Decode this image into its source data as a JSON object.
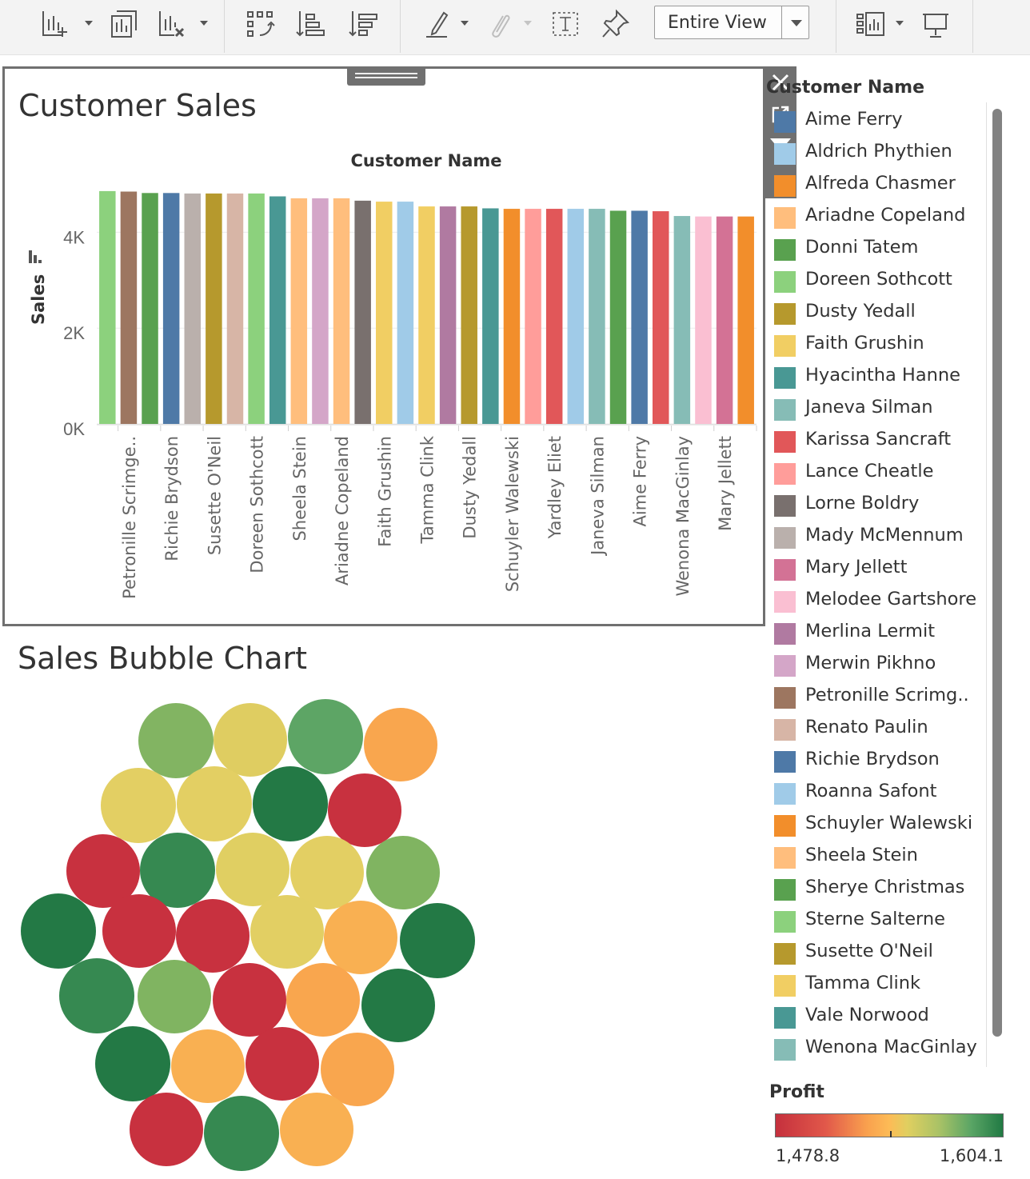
{
  "toolbar": {
    "buttons": [
      "new-worksheet-icon",
      "duplicate-sheet-icon",
      "clear-sheet-icon",
      "swap-axes-icon",
      "sort-ascending-icon",
      "sort-descending-icon",
      "highlight-icon",
      "group-members-icon",
      "show-mark-labels-icon",
      "pin-axes-icon",
      "show-me-icon",
      "presentation-mode-icon"
    ],
    "fit": "Entire View"
  },
  "sales_chart": {
    "title": "Customer Sales",
    "panel_tools": [
      "close-icon",
      "open-in-new-icon",
      "filter-icon",
      "more-options-icon"
    ]
  },
  "bubble_chart": {
    "title": "Sales Bubble Chart"
  },
  "chart_data": [
    {
      "type": "bar",
      "xlabel": "Customer Name",
      "ylabel": "Sales",
      "ylim": [
        0,
        5000
      ],
      "yticks": [
        "0K",
        "2K",
        "4K"
      ],
      "grid": true,
      "categories": [
        "Sterne Salterne",
        "Petronille Scrimge..",
        "Sherye Christmas",
        "Richie Brydson",
        "Mady McMennum",
        "Susette O'Neil",
        "Renato Paulin",
        "Doreen Sothcott",
        "Vale Norwood",
        "Sheela Stein",
        "Merwin Pikhno",
        "Ariadne Copeland",
        "Lorne Boldry",
        "Faith Grushin",
        "Roanna Safont",
        "Tamma Clink",
        "Merlina Lermit",
        "Dusty Yedall",
        "Hyacintha Hanne",
        "Schuyler Walewski",
        "Lance Cheatle",
        "Yardley Eliet",
        "Roanna Safont",
        "Janeva Silman",
        "Sherye Christmas",
        "Aime Ferry",
        "Karissa Sancraft",
        "Wenona MacGinlay",
        "Melodee Gartshore",
        "Mary Jellett",
        "Schuyler Walewski"
      ],
      "values": [
        4860,
        4850,
        4820,
        4820,
        4810,
        4810,
        4810,
        4810,
        4750,
        4710,
        4710,
        4710,
        4660,
        4640,
        4640,
        4540,
        4540,
        4540,
        4500,
        4490,
        4490,
        4490,
        4490,
        4490,
        4450,
        4450,
        4440,
        4340,
        4330,
        4330,
        4330
      ],
      "tick_labels": [
        "Petronille Scrimge..",
        "Richie Brydson",
        "Susette O'Neil",
        "Doreen Sothcott",
        "Sheela Stein",
        "Ariadne Copeland",
        "Faith Grushin",
        "Tamma Clink",
        "Dusty Yedall",
        "Schuyler Walewski",
        "Yardley Eliet",
        "Janeva Silman",
        "Aime Ferry",
        "Wenona MacGinlay",
        "Mary Jellett"
      ],
      "colors": [
        "#8cd17d",
        "#9d7660",
        "#59a14f",
        "#4e79a7",
        "#bab0ac",
        "#b6992d",
        "#d7b5a6",
        "#8cd17d",
        "#499894",
        "#ffbe7d",
        "#d4a6c8",
        "#ffbe7d",
        "#79706e",
        "#f1ce63",
        "#a0cbe8",
        "#f1ce63",
        "#b07aa1",
        "#b6992d",
        "#499894",
        "#f28e2b",
        "#ff9d9a",
        "#e15759",
        "#a0cbe8",
        "#86bcb6",
        "#59a14f",
        "#4e79a7",
        "#e15759",
        "#86bcb6",
        "#fabfd2",
        "#d37295",
        "#f28e2b"
      ]
    },
    {
      "type": "bubble",
      "color_measure": "Profit",
      "color_range": [
        1478.8,
        1604.1
      ],
      "bubbles": [
        {
          "profit": 1575,
          "color": "#82b462"
        },
        {
          "profit": 1540,
          "color": "#dfcd61"
        },
        {
          "profit": 1585,
          "color": "#5da565"
        },
        {
          "profit": 1515,
          "color": "#f9a64e"
        },
        {
          "profit": 1540,
          "color": "#e3cf63"
        },
        {
          "profit": 1540,
          "color": "#e3cf63"
        },
        {
          "profit": 1604,
          "color": "#237945"
        },
        {
          "profit": 1479,
          "color": "#c8313f"
        },
        {
          "profit": 1479,
          "color": "#c8313f"
        },
        {
          "profit": 1598,
          "color": "#368951"
        },
        {
          "profit": 1540,
          "color": "#e0cf62"
        },
        {
          "profit": 1540,
          "color": "#e3cf63"
        },
        {
          "profit": 1575,
          "color": "#80b461"
        },
        {
          "profit": 1604,
          "color": "#237945"
        },
        {
          "profit": 1479,
          "color": "#c8313f"
        },
        {
          "profit": 1479,
          "color": "#c8313f"
        },
        {
          "profit": 1540,
          "color": "#e2cf63"
        },
        {
          "profit": 1525,
          "color": "#f9b052"
        },
        {
          "profit": 1604,
          "color": "#237945"
        },
        {
          "profit": 1598,
          "color": "#368951"
        },
        {
          "profit": 1575,
          "color": "#80b461"
        },
        {
          "profit": 1479,
          "color": "#c8313f"
        },
        {
          "profit": 1515,
          "color": "#f9a64e"
        },
        {
          "profit": 1604,
          "color": "#237945"
        },
        {
          "profit": 1604,
          "color": "#237945"
        },
        {
          "profit": 1525,
          "color": "#f9b052"
        },
        {
          "profit": 1479,
          "color": "#c8313f"
        },
        {
          "profit": 1515,
          "color": "#f9a64e"
        },
        {
          "profit": 1479,
          "color": "#c8313f"
        },
        {
          "profit": 1598,
          "color": "#368951"
        },
        {
          "profit": 1525,
          "color": "#f9b052"
        }
      ]
    }
  ],
  "legend": {
    "title": "Customer Name",
    "items": [
      {
        "label": "Aime Ferry",
        "color": "#4e79a7"
      },
      {
        "label": "Aldrich Phythien",
        "color": "#a0cbe8"
      },
      {
        "label": "Alfreda Chasmer",
        "color": "#f28e2b"
      },
      {
        "label": "Ariadne Copeland",
        "color": "#ffbe7d"
      },
      {
        "label": "Donni Tatem",
        "color": "#59a14f"
      },
      {
        "label": "Doreen Sothcott",
        "color": "#8cd17d"
      },
      {
        "label": "Dusty Yedall",
        "color": "#b6992d"
      },
      {
        "label": "Faith Grushin",
        "color": "#f1ce63"
      },
      {
        "label": "Hyacintha Hanne",
        "color": "#499894"
      },
      {
        "label": "Janeva Silman",
        "color": "#86bcb6"
      },
      {
        "label": "Karissa Sancraft",
        "color": "#e15759"
      },
      {
        "label": "Lance Cheatle",
        "color": "#ff9d9a"
      },
      {
        "label": "Lorne Boldry",
        "color": "#79706e"
      },
      {
        "label": "Mady McMennum",
        "color": "#bab0ac"
      },
      {
        "label": "Mary Jellett",
        "color": "#d37295"
      },
      {
        "label": "Melodee Gartshore",
        "color": "#fabfd2"
      },
      {
        "label": "Merlina Lermit",
        "color": "#b07aa1"
      },
      {
        "label": "Merwin Pikhno",
        "color": "#d4a6c8"
      },
      {
        "label": "Petronille Scrimg..",
        "color": "#9d7660"
      },
      {
        "label": "Renato Paulin",
        "color": "#d7b5a6"
      },
      {
        "label": "Richie Brydson",
        "color": "#4e79a7"
      },
      {
        "label": "Roanna Safont",
        "color": "#a0cbe8"
      },
      {
        "label": "Schuyler Walewski",
        "color": "#f28e2b"
      },
      {
        "label": "Sheela Stein",
        "color": "#ffbe7d"
      },
      {
        "label": "Sherye Christmas",
        "color": "#59a14f"
      },
      {
        "label": "Sterne Salterne",
        "color": "#8cd17d"
      },
      {
        "label": "Susette O'Neil",
        "color": "#b6992d"
      },
      {
        "label": "Tamma Clink",
        "color": "#f1ce63"
      },
      {
        "label": "Vale Norwood",
        "color": "#499894"
      },
      {
        "label": "Wenona MacGinlay",
        "color": "#86bcb6"
      }
    ]
  },
  "profit_legend": {
    "title": "Profit",
    "min": "1,478.8",
    "max": "1,604.1",
    "colors": {
      "low": "#c5303d",
      "mid": "#fdbb56",
      "high": "#217a44"
    }
  }
}
